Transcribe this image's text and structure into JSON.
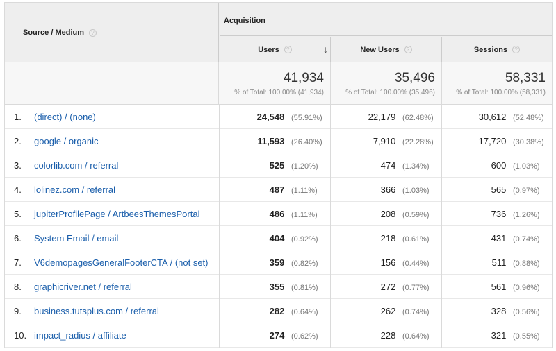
{
  "header": {
    "dimension_label": "Source / Medium",
    "group_label": "Acquisition",
    "columns": [
      "Users",
      "New Users",
      "Sessions"
    ]
  },
  "totals": [
    {
      "value": "41,934",
      "pct": "% of Total: 100.00% (41,934)"
    },
    {
      "value": "35,496",
      "pct": "% of Total: 100.00% (35,496)"
    },
    {
      "value": "58,331",
      "pct": "% of Total: 100.00% (58,331)"
    }
  ],
  "rows": [
    {
      "idx": "1.",
      "name": "(direct) / (none)",
      "users": "24,548",
      "users_pct": "(55.91%)",
      "new_users": "22,179",
      "new_users_pct": "(62.48%)",
      "sessions": "30,612",
      "sessions_pct": "(52.48%)"
    },
    {
      "idx": "2.",
      "name": "google / organic",
      "users": "11,593",
      "users_pct": "(26.40%)",
      "new_users": "7,910",
      "new_users_pct": "(22.28%)",
      "sessions": "17,720",
      "sessions_pct": "(30.38%)"
    },
    {
      "idx": "3.",
      "name": "colorlib.com / referral",
      "users": "525",
      "users_pct": "(1.20%)",
      "new_users": "474",
      "new_users_pct": "(1.34%)",
      "sessions": "600",
      "sessions_pct": "(1.03%)"
    },
    {
      "idx": "4.",
      "name": "lolinez.com / referral",
      "users": "487",
      "users_pct": "(1.11%)",
      "new_users": "366",
      "new_users_pct": "(1.03%)",
      "sessions": "565",
      "sessions_pct": "(0.97%)"
    },
    {
      "idx": "5.",
      "name": "jupiterProfilePage / ArtbeesThemesPortal",
      "users": "486",
      "users_pct": "(1.11%)",
      "new_users": "208",
      "new_users_pct": "(0.59%)",
      "sessions": "736",
      "sessions_pct": "(1.26%)"
    },
    {
      "idx": "6.",
      "name": "System Email / email",
      "users": "404",
      "users_pct": "(0.92%)",
      "new_users": "218",
      "new_users_pct": "(0.61%)",
      "sessions": "431",
      "sessions_pct": "(0.74%)"
    },
    {
      "idx": "7.",
      "name": "V6demopagesGeneralFooterCTA / (not set)",
      "users": "359",
      "users_pct": "(0.82%)",
      "new_users": "156",
      "new_users_pct": "(0.44%)",
      "sessions": "511",
      "sessions_pct": "(0.88%)"
    },
    {
      "idx": "8.",
      "name": "graphicriver.net / referral",
      "users": "355",
      "users_pct": "(0.81%)",
      "new_users": "272",
      "new_users_pct": "(0.77%)",
      "sessions": "561",
      "sessions_pct": "(0.96%)"
    },
    {
      "idx": "9.",
      "name": "business.tutsplus.com / referral",
      "users": "282",
      "users_pct": "(0.64%)",
      "new_users": "262",
      "new_users_pct": "(0.74%)",
      "sessions": "328",
      "sessions_pct": "(0.56%)"
    },
    {
      "idx": "10.",
      "name": "impact_radius / affiliate",
      "users": "274",
      "users_pct": "(0.62%)",
      "new_users": "228",
      "new_users_pct": "(0.64%)",
      "sessions": "321",
      "sessions_pct": "(0.55%)"
    }
  ]
}
